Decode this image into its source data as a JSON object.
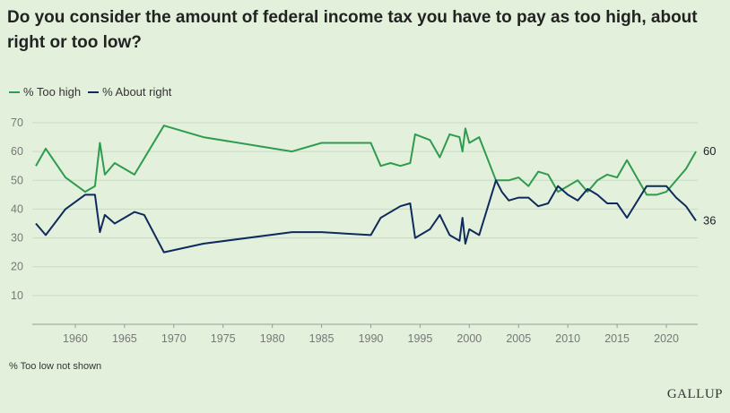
{
  "title": "Do you consider the amount of federal income tax you have to pay as too high, about right or too low?",
  "note": "% Too low not shown",
  "brand": "GALLUP",
  "colors": {
    "too_high": "#2e9b4e",
    "about_right": "#0f2a5c",
    "grid": "#c9d9c3",
    "background": "#e3f1dc"
  },
  "chart_data": {
    "type": "line",
    "title": "Do you consider the amount of federal income tax you have to pay as too high, about right or too low?",
    "xlim": [
      1956,
      2023
    ],
    "ylim": [
      0,
      70
    ],
    "grid": true,
    "legend_position": "top-left",
    "x_ticks": [
      1960,
      1965,
      1970,
      1975,
      1980,
      1985,
      1990,
      1995,
      2000,
      2005,
      2010,
      2015,
      2020
    ],
    "y_ticks": [
      10,
      20,
      30,
      40,
      50,
      60,
      70
    ],
    "series": [
      {
        "name": "% Too high",
        "end_label": "60",
        "points": [
          [
            1956,
            55
          ],
          [
            1957,
            61
          ],
          [
            1959,
            51
          ],
          [
            1961,
            46
          ],
          [
            1962,
            48
          ],
          [
            1962.5,
            63
          ],
          [
            1963,
            52
          ],
          [
            1964,
            56
          ],
          [
            1966,
            52
          ],
          [
            1969,
            69
          ],
          [
            1973,
            65
          ],
          [
            1982,
            60
          ],
          [
            1985,
            63
          ],
          [
            1990,
            63
          ],
          [
            1991,
            55
          ],
          [
            1992,
            56
          ],
          [
            1993,
            55
          ],
          [
            1994,
            56
          ],
          [
            1994.5,
            66
          ],
          [
            1996,
            64
          ],
          [
            1997,
            58
          ],
          [
            1998,
            66
          ],
          [
            1999,
            65
          ],
          [
            1999.3,
            60
          ],
          [
            1999.6,
            68
          ],
          [
            2000,
            63
          ],
          [
            2001,
            65
          ],
          [
            2002.7,
            50
          ],
          [
            2003.3,
            50
          ],
          [
            2004,
            50
          ],
          [
            2005,
            51
          ],
          [
            2006,
            48
          ],
          [
            2007,
            53
          ],
          [
            2008,
            52
          ],
          [
            2009,
            46
          ],
          [
            2010,
            48
          ],
          [
            2011,
            50
          ],
          [
            2012,
            46
          ],
          [
            2013,
            50
          ],
          [
            2014,
            52
          ],
          [
            2015,
            51
          ],
          [
            2016,
            57
          ],
          [
            2018,
            45
          ],
          [
            2019,
            45
          ],
          [
            2020,
            46
          ],
          [
            2022,
            54
          ],
          [
            2023,
            60
          ]
        ]
      },
      {
        "name": "% About right",
        "end_label": "36",
        "points": [
          [
            1956,
            35
          ],
          [
            1957,
            31
          ],
          [
            1959,
            40
          ],
          [
            1961,
            45
          ],
          [
            1962,
            45
          ],
          [
            1962.5,
            32
          ],
          [
            1963,
            38
          ],
          [
            1964,
            35
          ],
          [
            1966,
            39
          ],
          [
            1967,
            38
          ],
          [
            1969,
            25
          ],
          [
            1973,
            28
          ],
          [
            1982,
            32
          ],
          [
            1985,
            32
          ],
          [
            1990,
            31
          ],
          [
            1991,
            37
          ],
          [
            1993,
            41
          ],
          [
            1994,
            42
          ],
          [
            1994.5,
            30
          ],
          [
            1996,
            33
          ],
          [
            1997,
            38
          ],
          [
            1998,
            31
          ],
          [
            1999,
            29
          ],
          [
            1999.3,
            37
          ],
          [
            1999.6,
            28
          ],
          [
            2000,
            33
          ],
          [
            2001,
            31
          ],
          [
            2002.7,
            50
          ],
          [
            2003.3,
            46
          ],
          [
            2004,
            43
          ],
          [
            2005,
            44
          ],
          [
            2006,
            44
          ],
          [
            2007,
            41
          ],
          [
            2008,
            42
          ],
          [
            2009,
            48
          ],
          [
            2010,
            45
          ],
          [
            2011,
            43
          ],
          [
            2012,
            47
          ],
          [
            2013,
            45
          ],
          [
            2014,
            42
          ],
          [
            2015,
            42
          ],
          [
            2016,
            37
          ],
          [
            2018,
            48
          ],
          [
            2019,
            48
          ],
          [
            2020,
            48
          ],
          [
            2021,
            44
          ],
          [
            2022,
            41
          ],
          [
            2023,
            36
          ]
        ]
      }
    ]
  }
}
